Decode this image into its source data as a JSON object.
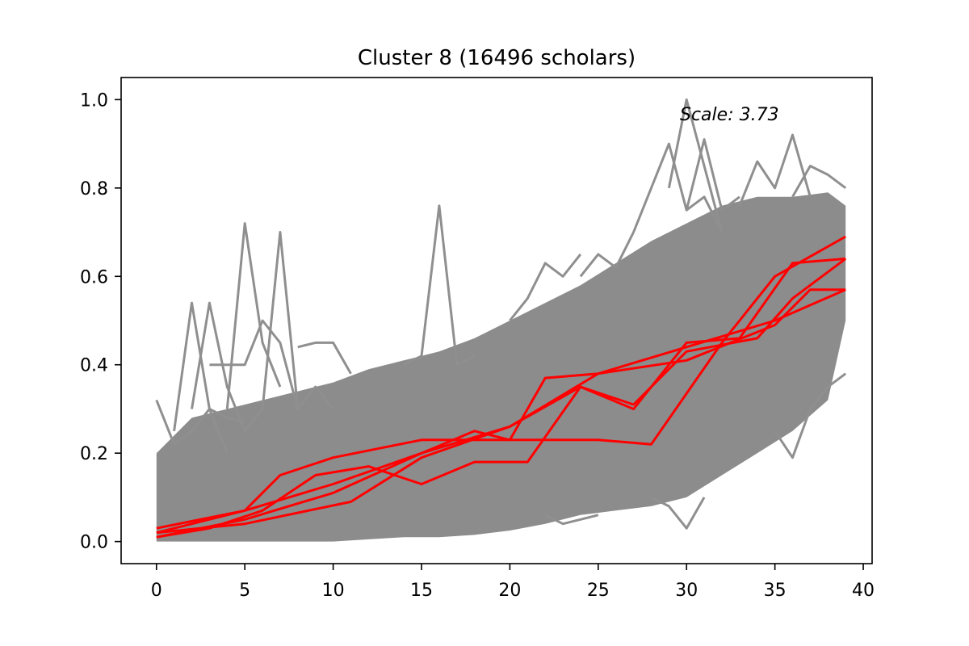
{
  "chart_data": {
    "type": "line",
    "title": "Cluster 8 (16496 scholars)",
    "xlabel": "",
    "ylabel": "",
    "xlim": [
      -2,
      40.5
    ],
    "ylim": [
      -0.05,
      1.05
    ],
    "x_ticks": [
      0,
      5,
      10,
      15,
      20,
      25,
      30,
      35,
      40
    ],
    "y_ticks": [
      0.0,
      0.2,
      0.4,
      0.6,
      0.8,
      1.0
    ],
    "x_tick_labels": [
      "0",
      "5",
      "10",
      "15",
      "20",
      "25",
      "30",
      "35",
      "40"
    ],
    "y_tick_labels": [
      "0.0",
      "0.2",
      "0.4",
      "0.6",
      "0.8",
      "1.0"
    ],
    "annotation": "Scale: 3.73",
    "grid": false,
    "background_colors": {
      "band": "#8c8c8c",
      "lines": "#8f8f8f"
    },
    "band": {
      "x": [
        0,
        2,
        4,
        6,
        8,
        10,
        12,
        14,
        16,
        18,
        20,
        22,
        24,
        26,
        28,
        30,
        32,
        34,
        36,
        38,
        39
      ],
      "lower": [
        0.0,
        0.0,
        0.0,
        0.0,
        0.0,
        0.0,
        0.005,
        0.01,
        0.01,
        0.015,
        0.025,
        0.04,
        0.06,
        0.07,
        0.08,
        0.1,
        0.15,
        0.2,
        0.25,
        0.32,
        0.5
      ],
      "upper": [
        0.2,
        0.28,
        0.3,
        0.32,
        0.34,
        0.36,
        0.39,
        0.41,
        0.43,
        0.46,
        0.5,
        0.54,
        0.58,
        0.63,
        0.68,
        0.72,
        0.76,
        0.78,
        0.78,
        0.79,
        0.76
      ]
    },
    "gray_series": [
      {
        "x": [
          0,
          1,
          2,
          3,
          4,
          5
        ],
        "y": [
          0.32,
          0.22,
          0.25,
          0.3,
          0.28,
          0.27
        ]
      },
      {
        "x": [
          1,
          2,
          3,
          4
        ],
        "y": [
          0.25,
          0.54,
          0.3,
          0.2
        ]
      },
      {
        "x": [
          2,
          3,
          4,
          5,
          6
        ],
        "y": [
          0.3,
          0.54,
          0.35,
          0.25,
          0.3
        ]
      },
      {
        "x": [
          4,
          5,
          6,
          7
        ],
        "y": [
          0.3,
          0.72,
          0.45,
          0.35
        ]
      },
      {
        "x": [
          6,
          7,
          8,
          9,
          10
        ],
        "y": [
          0.3,
          0.7,
          0.3,
          0.35,
          0.3
        ]
      },
      {
        "x": [
          3,
          5,
          6,
          7,
          8
        ],
        "y": [
          0.4,
          0.4,
          0.5,
          0.45,
          0.3
        ]
      },
      {
        "x": [
          8,
          9,
          10,
          11
        ],
        "y": [
          0.44,
          0.45,
          0.45,
          0.38
        ]
      },
      {
        "x": [
          14,
          15,
          16,
          17,
          18
        ],
        "y": [
          0.4,
          0.42,
          0.76,
          0.4,
          0.42
        ]
      },
      {
        "x": [
          27,
          28,
          29,
          30,
          31,
          32
        ],
        "y": [
          0.7,
          0.8,
          0.9,
          0.75,
          0.78,
          0.7
        ]
      },
      {
        "x": [
          29,
          30,
          31,
          32
        ],
        "y": [
          0.8,
          1.0,
          0.85,
          0.7
        ]
      },
      {
        "x": [
          30,
          31,
          32,
          33
        ],
        "y": [
          0.75,
          0.91,
          0.75,
          0.78
        ]
      },
      {
        "x": [
          33,
          34,
          35,
          36,
          37
        ],
        "y": [
          0.76,
          0.86,
          0.8,
          0.92,
          0.78
        ]
      },
      {
        "x": [
          36,
          37,
          38,
          39
        ],
        "y": [
          0.78,
          0.85,
          0.83,
          0.8
        ]
      },
      {
        "x": [
          28,
          29,
          30,
          31
        ],
        "y": [
          0.1,
          0.08,
          0.03,
          0.1
        ]
      },
      {
        "x": [
          35,
          36,
          37,
          38,
          39
        ],
        "y": [
          0.25,
          0.19,
          0.3,
          0.35,
          0.38
        ]
      },
      {
        "x": [
          20,
          21,
          22,
          23,
          24
        ],
        "y": [
          0.5,
          0.55,
          0.63,
          0.6,
          0.65
        ]
      },
      {
        "x": [
          24,
          25,
          26,
          27
        ],
        "y": [
          0.6,
          0.65,
          0.62,
          0.7
        ]
      },
      {
        "x": [
          22,
          23,
          24,
          25
        ],
        "y": [
          0.06,
          0.04,
          0.05,
          0.06
        ]
      }
    ],
    "series": [
      {
        "color": "#ff0000",
        "x": [
          0,
          5,
          10,
          15,
          18,
          20,
          22,
          25,
          28,
          32,
          35,
          39
        ],
        "y": [
          0.01,
          0.05,
          0.11,
          0.2,
          0.25,
          0.23,
          0.23,
          0.23,
          0.22,
          0.45,
          0.6,
          0.69
        ]
      },
      {
        "color": "#ff0000",
        "x": [
          0,
          5,
          7,
          10,
          15,
          20,
          22,
          25,
          30,
          35,
          39
        ],
        "y": [
          0.02,
          0.07,
          0.15,
          0.19,
          0.23,
          0.23,
          0.37,
          0.38,
          0.44,
          0.5,
          0.57
        ]
      },
      {
        "color": "#ff0000",
        "x": [
          0,
          3,
          6,
          9,
          12,
          15,
          18,
          21,
          24,
          27,
          30,
          33,
          36,
          39
        ],
        "y": [
          0.01,
          0.03,
          0.07,
          0.15,
          0.17,
          0.13,
          0.18,
          0.18,
          0.35,
          0.3,
          0.45,
          0.46,
          0.63,
          0.64
        ]
      },
      {
        "color": "#ff0000",
        "x": [
          0,
          5,
          11,
          15,
          20,
          24,
          27,
          30,
          34,
          36,
          39
        ],
        "y": [
          0.02,
          0.04,
          0.09,
          0.19,
          0.26,
          0.35,
          0.31,
          0.43,
          0.46,
          0.55,
          0.64
        ]
      },
      {
        "color": "#ff0000",
        "x": [
          0,
          5,
          10,
          15,
          20,
          25,
          30,
          35,
          37,
          39
        ],
        "y": [
          0.03,
          0.07,
          0.13,
          0.2,
          0.26,
          0.38,
          0.41,
          0.49,
          0.57,
          0.57
        ]
      }
    ]
  }
}
